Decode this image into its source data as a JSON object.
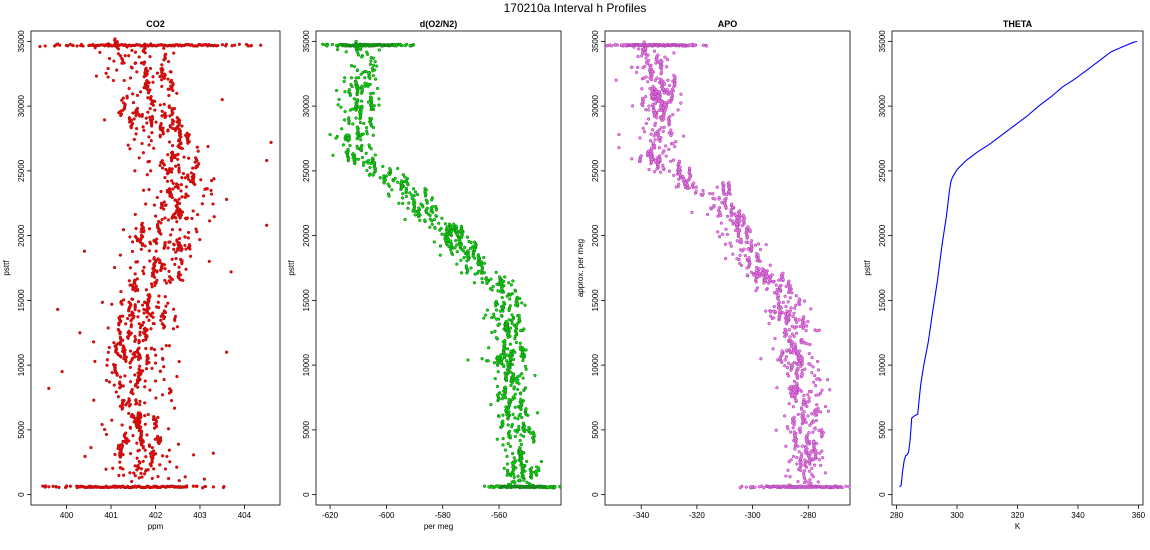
{
  "figure_title": "170210a   Interval h Profiles",
  "chart_data": [
    {
      "type": "scatter",
      "title": "CO2",
      "xlabel": "ppm",
      "ylabel": "psttf",
      "xlim": [
        399.2,
        404.8
      ],
      "ylim": [
        -800,
        35800
      ],
      "xticks": [
        400,
        401,
        402,
        403,
        404
      ],
      "yticks": [
        0,
        5000,
        10000,
        15000,
        20000,
        25000,
        30000,
        35000
      ],
      "color": "#ff0000",
      "edge": "#8b1a1a",
      "profile": [
        [
          600,
          401.8
        ],
        [
          2000,
          401.6
        ],
        [
          4000,
          401.6
        ],
        [
          6000,
          401.6
        ],
        [
          8000,
          401.6
        ],
        [
          10000,
          401.6
        ],
        [
          12000,
          401.6
        ],
        [
          14000,
          401.7
        ],
        [
          16000,
          401.9
        ],
        [
          18000,
          402.1
        ],
        [
          20000,
          402.3
        ],
        [
          22000,
          402.5
        ],
        [
          24000,
          402.5
        ],
        [
          26000,
          402.3
        ],
        [
          28000,
          402.1
        ],
        [
          30000,
          401.8
        ],
        [
          32000,
          401.6
        ],
        [
          34000,
          401.5
        ],
        [
          34800,
          401.4
        ]
      ],
      "spread": 0.55,
      "outliers": [
        [
          404.6,
          27200
        ],
        [
          404.5,
          25800
        ],
        [
          404.5,
          20800
        ],
        [
          399.6,
          8200
        ],
        [
          399.8,
          14300
        ],
        [
          399.4,
          34600
        ],
        [
          399.8,
          34800
        ],
        [
          403.6,
          11000
        ],
        [
          403.7,
          17200
        ],
        [
          403.6,
          22800
        ],
        [
          403.5,
          30500
        ],
        [
          403.3,
          3200
        ],
        [
          403.1,
          1200
        ],
        [
          400.4,
          18800
        ],
        [
          400.3,
          12500
        ],
        [
          399.9,
          9500
        ]
      ],
      "bands": [
        {
          "y": 600,
          "x0": 400.3,
          "x1": 402.7
        },
        {
          "y": 34700,
          "x0": 400.5,
          "x1": 403.4
        }
      ],
      "seed": 11
    },
    {
      "type": "scatter",
      "title": "d(O2/N2)",
      "xlabel": "per meg",
      "ylabel": "psttf",
      "xlim": [
        -625,
        -538
      ],
      "ylim": [
        -800,
        35800
      ],
      "xticks": [
        -620,
        -600,
        -580,
        -560
      ],
      "yticks": [
        0,
        5000,
        10000,
        15000,
        20000,
        25000,
        30000,
        35000
      ],
      "color": "#00e600",
      "edge": "#1f5a1f",
      "profile": [
        [
          600,
          -552
        ],
        [
          3000,
          -553
        ],
        [
          6000,
          -554
        ],
        [
          9000,
          -555
        ],
        [
          12000,
          -557
        ],
        [
          14000,
          -557
        ],
        [
          15500,
          -557
        ],
        [
          17000,
          -565
        ],
        [
          18500,
          -572
        ],
        [
          20000,
          -578
        ],
        [
          21500,
          -585
        ],
        [
          23000,
          -590
        ],
        [
          24500,
          -600
        ],
        [
          25500,
          -607
        ],
        [
          27000,
          -610
        ],
        [
          29000,
          -609
        ],
        [
          31000,
          -610
        ],
        [
          33000,
          -608
        ],
        [
          34800,
          -609
        ]
      ],
      "spread": 4.5,
      "outliers": [
        [
          -620,
          27800
        ],
        [
          -619,
          26200
        ],
        [
          -615,
          31900
        ],
        [
          -571,
          10400
        ],
        [
          -566,
          10500
        ],
        [
          -570,
          17500
        ],
        [
          -575,
          17800
        ],
        [
          -594,
          24700
        ],
        [
          -600,
          24600
        ]
      ],
      "bands": [
        {
          "y": 600,
          "x0": -560,
          "x1": -543
        },
        {
          "y": 34700,
          "x0": -616,
          "x1": -597
        }
      ],
      "seed": 22
    },
    {
      "type": "scatter",
      "title": "APO",
      "xlabel": "",
      "ylabel": "approx. per meg",
      "xlim": [
        -353,
        -265
      ],
      "ylim": [
        -800,
        35800
      ],
      "xticks": [
        -340,
        -320,
        -300,
        -280
      ],
      "yticks": [
        0,
        5000,
        10000,
        15000,
        20000,
        25000,
        30000,
        35000
      ],
      "color": "#ee82ee",
      "edge": "#9a2a9a",
      "profile": [
        [
          600,
          -282
        ],
        [
          3000,
          -280
        ],
        [
          6000,
          -281
        ],
        [
          9000,
          -283
        ],
        [
          12000,
          -285
        ],
        [
          14000,
          -287
        ],
        [
          15500,
          -289
        ],
        [
          17000,
          -297
        ],
        [
          18500,
          -302
        ],
        [
          20000,
          -305
        ],
        [
          21500,
          -311
        ],
        [
          23000,
          -314
        ],
        [
          24500,
          -327
        ],
        [
          25500,
          -333
        ],
        [
          27000,
          -334
        ],
        [
          29000,
          -333
        ],
        [
          31000,
          -334
        ],
        [
          33000,
          -336
        ],
        [
          34800,
          -338
        ]
      ],
      "spread": 5,
      "outliers": [
        [
          -349,
          32000
        ],
        [
          -348,
          27800
        ],
        [
          -348,
          26800
        ],
        [
          -276,
          12700
        ],
        [
          -297,
          10500
        ],
        [
          -302,
          17500
        ]
      ],
      "bands": [
        {
          "y": 600,
          "x0": -295,
          "x1": -268
        },
        {
          "y": 34700,
          "x0": -345,
          "x1": -323
        }
      ],
      "seed": 33
    },
    {
      "type": "line",
      "title": "THETA",
      "xlabel": "K",
      "ylabel": "psttf",
      "xlim": [
        278.5,
        361.5
      ],
      "ylim": [
        -800,
        35800
      ],
      "xticks": [
        280,
        300,
        320,
        340,
        360
      ],
      "yticks": [
        0,
        5000,
        10000,
        15000,
        20000,
        25000,
        30000,
        35000
      ],
      "color": "#0000ff",
      "x": [
        281.0,
        281.5,
        282.0,
        282.5,
        283.0,
        283.6,
        284.0,
        284.5,
        285.0,
        286.0,
        287.0,
        288.0,
        289.0,
        290.5,
        292.0,
        293.5,
        295.0,
        296.5,
        297.5,
        298.0,
        298.5,
        300.0,
        303.0,
        307.0,
        311.0,
        315.0,
        319.0,
        323.0,
        327.0,
        331.0,
        335.0,
        339.0,
        343.0,
        347.0,
        351.0,
        355.0,
        358.0,
        359.5
      ],
      "y": [
        600,
        700,
        1800,
        2600,
        3000,
        3100,
        3300,
        4200,
        5900,
        6100,
        6200,
        8500,
        10000,
        11800,
        14200,
        16500,
        19200,
        21500,
        23500,
        24200,
        24500,
        25100,
        25800,
        26500,
        27100,
        27800,
        28500,
        29200,
        30000,
        30700,
        31500,
        32100,
        32800,
        33500,
        34200,
        34600,
        34900,
        35000
      ]
    }
  ]
}
